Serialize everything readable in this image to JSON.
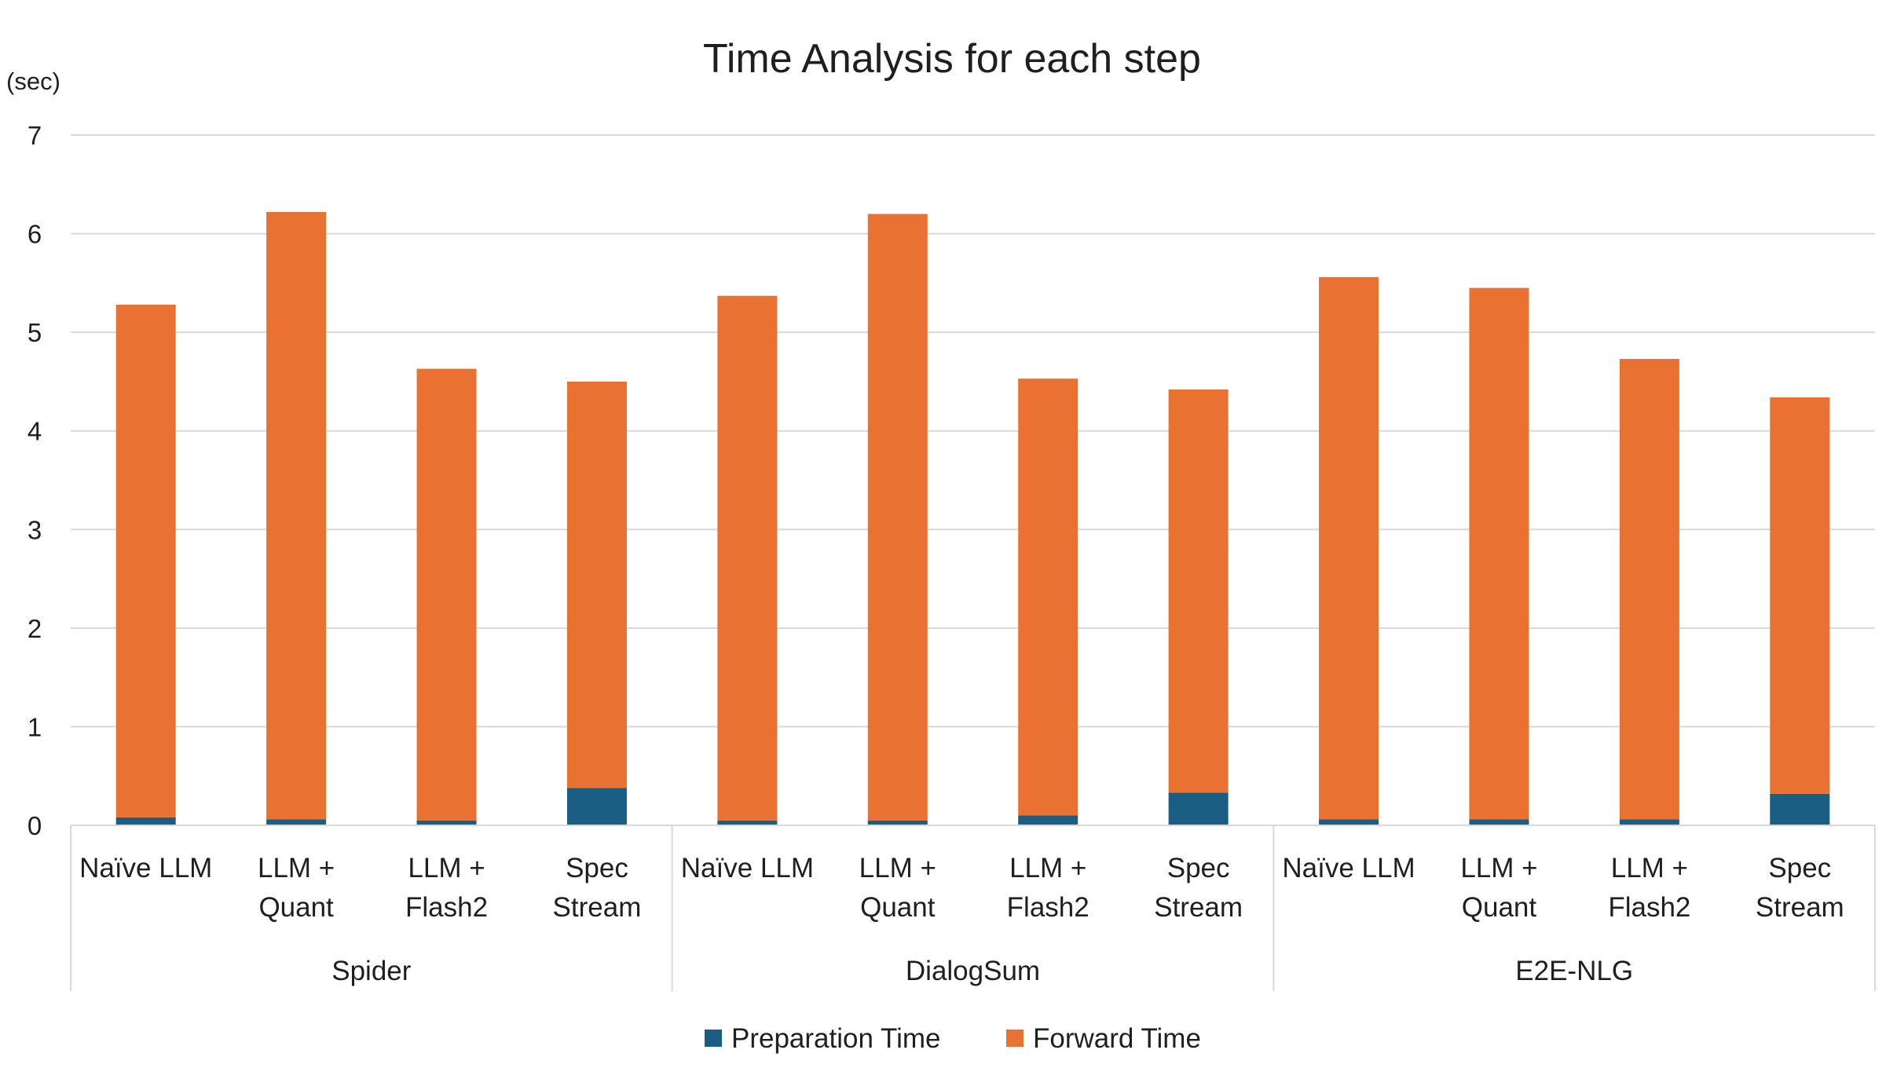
{
  "chart_data": {
    "type": "bar",
    "stacked": true,
    "title": "Time Analysis for each step",
    "ylabel": "(sec)",
    "xlabel": "",
    "ylim": [
      0,
      7
    ],
    "yticks": [
      0,
      1,
      2,
      3,
      4,
      5,
      6,
      7
    ],
    "grid": true,
    "legend_position": "bottom",
    "groups": [
      {
        "name": "Spider",
        "categories": [
          [
            "Naïve LLM"
          ],
          [
            "LLM +",
            "Quant"
          ],
          [
            "LLM +",
            "Flash2"
          ],
          [
            "Spec",
            "Stream"
          ]
        ]
      },
      {
        "name": "DialogSum",
        "categories": [
          [
            "Naïve LLM"
          ],
          [
            "LLM +",
            "Quant"
          ],
          [
            "LLM +",
            "Flash2"
          ],
          [
            "Spec",
            "Stream"
          ]
        ]
      },
      {
        "name": "E2E-NLG",
        "categories": [
          [
            "Naïve LLM"
          ],
          [
            "LLM +",
            "Quant"
          ],
          [
            "LLM +",
            "Flash2"
          ],
          [
            "Spec",
            "Stream"
          ]
        ]
      }
    ],
    "series": [
      {
        "name": "Preparation Time",
        "color": "#1a5e83",
        "values": [
          0.08,
          0.06,
          0.05,
          0.38,
          0.05,
          0.05,
          0.1,
          0.33,
          0.06,
          0.06,
          0.06,
          0.32
        ]
      },
      {
        "name": "Forward Time",
        "color": "#e97132",
        "values": [
          5.2,
          6.16,
          4.58,
          4.12,
          5.32,
          6.15,
          4.43,
          4.09,
          5.5,
          5.39,
          4.67,
          4.02
        ]
      }
    ]
  }
}
